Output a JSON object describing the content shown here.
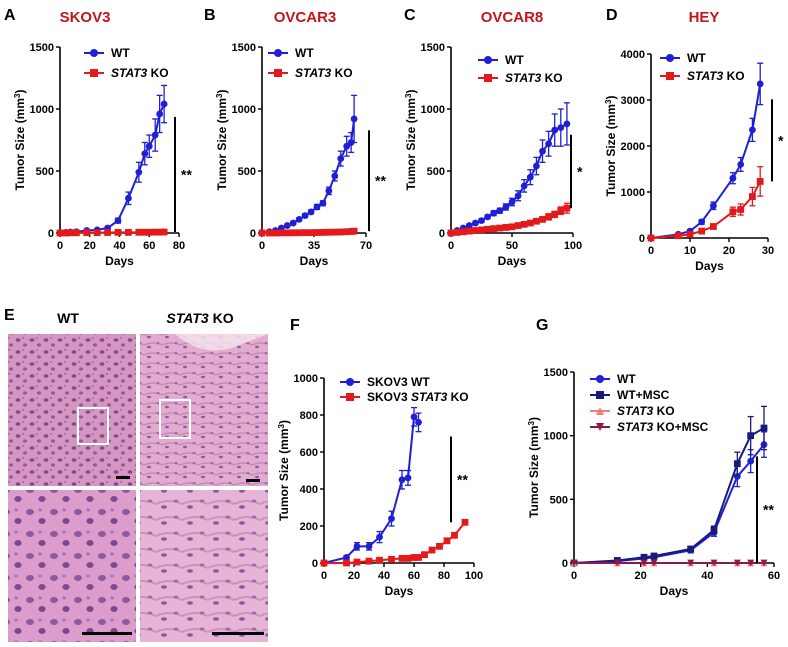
{
  "figure": {
    "panels": {
      "A": {
        "letter": "A",
        "title": "SKOV3"
      },
      "B": {
        "letter": "B",
        "title": "OVCAR3"
      },
      "C": {
        "letter": "C",
        "title": "OVCAR8"
      },
      "D": {
        "letter": "D",
        "title": "HEY"
      },
      "E": {
        "letter": "E",
        "label_wt": "WT",
        "label_ko_gene": "STAT3",
        "label_ko_suffix": " KO"
      },
      "F": {
        "letter": "F"
      },
      "G": {
        "letter": "G"
      }
    },
    "colors": {
      "wt": "#1f1fd6",
      "ko": "#e31a1c",
      "wt_msc": "#1a1a7a",
      "ko_light": "#f08080",
      "ko_msc": "#8b1a4a",
      "title_red": "#c0161c"
    }
  },
  "chart_data": [
    {
      "id": "A",
      "type": "line",
      "title": "SKOV3",
      "xlabel": "Days",
      "ylabel": "Tumor Size (mm3)",
      "xlim": [
        0,
        80
      ],
      "ylim": [
        0,
        1500
      ],
      "xticks": [
        0,
        20,
        40,
        60,
        80
      ],
      "yticks": [
        0,
        500,
        1000,
        1500
      ],
      "legend": "top-left",
      "significance": "**",
      "series": [
        {
          "name": "WT",
          "color": "#1f1fd6",
          "marker": "circle",
          "x": [
            0,
            4,
            7,
            11,
            18,
            25,
            32,
            39,
            46,
            53,
            57,
            60,
            64,
            67,
            70
          ],
          "y": [
            0,
            5,
            8,
            10,
            20,
            25,
            40,
            100,
            280,
            490,
            640,
            700,
            790,
            960,
            1040
          ],
          "err": [
            0,
            0,
            0,
            5,
            5,
            8,
            10,
            20,
            50,
            80,
            90,
            90,
            130,
            150,
            150
          ]
        },
        {
          "name": "STAT3 KO",
          "name_gene": "STAT3",
          "name_suffix": " KO",
          "color": "#e31a1c",
          "marker": "square",
          "x": [
            0,
            4,
            7,
            11,
            18,
            25,
            32,
            39,
            46,
            53,
            57,
            60,
            64,
            67,
            70
          ],
          "y": [
            0,
            0,
            2,
            2,
            3,
            3,
            4,
            5,
            5,
            6,
            6,
            6,
            7,
            7,
            8
          ],
          "err": [
            0,
            0,
            0,
            0,
            0,
            0,
            0,
            0,
            0,
            0,
            0,
            0,
            0,
            0,
            0
          ]
        }
      ]
    },
    {
      "id": "B",
      "type": "line",
      "title": "OVCAR3",
      "xlabel": "Days",
      "ylabel": "Tumor Size (mm3)",
      "xlim": [
        0,
        70
      ],
      "ylim": [
        0,
        1500
      ],
      "xticks": [
        0,
        35,
        70
      ],
      "yticks": [
        0,
        500,
        1000,
        1500
      ],
      "legend": "top-left",
      "significance": "**",
      "series": [
        {
          "name": "WT",
          "color": "#1f1fd6",
          "marker": "circle",
          "x": [
            0,
            5,
            9,
            13,
            17,
            21,
            25,
            29,
            33,
            37,
            41,
            45,
            49,
            53,
            57,
            60,
            62
          ],
          "y": [
            0,
            10,
            20,
            40,
            60,
            80,
            110,
            140,
            170,
            210,
            240,
            340,
            460,
            600,
            700,
            730,
            920
          ],
          "err": [
            0,
            0,
            5,
            5,
            8,
            10,
            10,
            15,
            15,
            20,
            20,
            30,
            40,
            60,
            80,
            80,
            190
          ]
        },
        {
          "name": "STAT3 KO",
          "name_gene": "STAT3",
          "name_suffix": " KO",
          "color": "#e31a1c",
          "marker": "square",
          "x": [
            0,
            5,
            9,
            13,
            17,
            21,
            25,
            29,
            33,
            37,
            41,
            45,
            49,
            53,
            57,
            60,
            62
          ],
          "y": [
            0,
            0,
            0,
            1,
            1,
            2,
            2,
            3,
            3,
            4,
            5,
            6,
            7,
            8,
            10,
            12,
            15
          ],
          "err": [
            0,
            0,
            0,
            0,
            0,
            0,
            0,
            0,
            0,
            0,
            0,
            0,
            0,
            0,
            0,
            0,
            0
          ]
        }
      ]
    },
    {
      "id": "C",
      "type": "line",
      "title": "OVCAR8",
      "xlabel": "Days",
      "ylabel": "Tumor Size (mm3)",
      "xlim": [
        0,
        100
      ],
      "ylim": [
        0,
        1500
      ],
      "xticks": [
        0,
        50,
        100
      ],
      "yticks": [
        0,
        500,
        1000,
        1500
      ],
      "legend": "top-left",
      "significance": "*",
      "series": [
        {
          "name": "WT",
          "color": "#1f1fd6",
          "marker": "circle",
          "x": [
            0,
            5,
            10,
            15,
            20,
            25,
            30,
            35,
            40,
            45,
            50,
            55,
            60,
            65,
            70,
            75,
            80,
            85,
            90,
            95
          ],
          "y": [
            0,
            20,
            40,
            60,
            80,
            100,
            130,
            160,
            180,
            210,
            250,
            300,
            380,
            450,
            540,
            660,
            720,
            830,
            850,
            880
          ],
          "err": [
            0,
            5,
            5,
            10,
            10,
            15,
            15,
            20,
            20,
            25,
            30,
            40,
            50,
            60,
            70,
            90,
            100,
            130,
            150,
            170
          ]
        },
        {
          "name": "STAT3 KO",
          "name_gene": "STAT3",
          "name_suffix": " KO",
          "color": "#e31a1c",
          "marker": "square",
          "x": [
            0,
            5,
            10,
            15,
            20,
            25,
            30,
            35,
            40,
            45,
            50,
            55,
            60,
            65,
            70,
            75,
            80,
            85,
            90,
            95
          ],
          "y": [
            0,
            5,
            10,
            15,
            20,
            25,
            30,
            35,
            40,
            45,
            50,
            60,
            70,
            80,
            95,
            110,
            130,
            150,
            180,
            200
          ],
          "err": [
            0,
            0,
            0,
            0,
            0,
            5,
            5,
            5,
            5,
            5,
            10,
            10,
            10,
            15,
            15,
            20,
            25,
            25,
            30,
            40
          ]
        }
      ]
    },
    {
      "id": "D",
      "type": "line",
      "title": "HEY",
      "xlabel": "Days",
      "ylabel": "Tumor Size (mm3)",
      "xlim": [
        0,
        30
      ],
      "ylim": [
        0,
        4000
      ],
      "xticks": [
        0,
        10,
        20,
        30
      ],
      "yticks": [
        0,
        1000,
        2000,
        3000,
        4000
      ],
      "legend": "top-left",
      "significance": "*",
      "series": [
        {
          "name": "WT",
          "color": "#1f1fd6",
          "marker": "circle",
          "x": [
            0,
            7,
            10,
            13,
            16,
            21,
            23,
            26,
            28
          ],
          "y": [
            0,
            80,
            150,
            350,
            700,
            1300,
            1600,
            2350,
            3350
          ],
          "err": [
            0,
            20,
            30,
            50,
            80,
            120,
            150,
            250,
            450
          ]
        },
        {
          "name": "STAT3 KO",
          "name_gene": "STAT3",
          "name_suffix": " KO",
          "color": "#e31a1c",
          "marker": "square",
          "x": [
            0,
            7,
            10,
            13,
            16,
            21,
            23,
            26,
            28
          ],
          "y": [
            0,
            50,
            80,
            150,
            250,
            570,
            620,
            900,
            1230
          ],
          "err": [
            0,
            10,
            20,
            30,
            50,
            100,
            120,
            200,
            320
          ]
        }
      ]
    },
    {
      "id": "F",
      "type": "line",
      "title": "",
      "xlabel": "Days",
      "ylabel": "Tumor Size (mm3)",
      "xlim": [
        0,
        100
      ],
      "ylim": [
        0,
        1000
      ],
      "xticks": [
        0,
        20,
        40,
        60,
        80,
        100
      ],
      "yticks": [
        0,
        200,
        400,
        600,
        800,
        1000
      ],
      "legend": "top-left",
      "significance": "**",
      "series": [
        {
          "name": "SKOV3 WT",
          "color": "#1f1fd6",
          "marker": "circle",
          "x": [
            0,
            15,
            22,
            30,
            37,
            45,
            52,
            56,
            60,
            63
          ],
          "y": [
            0,
            30,
            90,
            90,
            140,
            240,
            450,
            460,
            790,
            760
          ],
          "err": [
            0,
            10,
            20,
            20,
            30,
            40,
            50,
            40,
            50,
            50
          ]
        },
        {
          "name": "SKOV3 STAT3 KO",
          "name_prefix": "SKOV3 ",
          "name_gene": "STAT3",
          "name_suffix": " KO",
          "color": "#e31a1c",
          "marker": "square",
          "x": [
            0,
            15,
            22,
            30,
            37,
            45,
            52,
            56,
            60,
            63,
            67,
            72,
            77,
            82,
            87,
            94
          ],
          "y": [
            0,
            0,
            5,
            10,
            15,
            20,
            25,
            25,
            30,
            30,
            45,
            70,
            90,
            120,
            150,
            220
          ],
          "err": [
            0,
            0,
            0,
            0,
            0,
            0,
            0,
            0,
            0,
            0,
            5,
            5,
            5,
            10,
            10,
            10
          ]
        }
      ]
    },
    {
      "id": "G",
      "type": "line",
      "title": "",
      "xlabel": "Days",
      "ylabel": "Tumor Size (mm3)",
      "xlim": [
        0,
        60
      ],
      "ylim": [
        0,
        1500
      ],
      "xticks": [
        0,
        20,
        40,
        60
      ],
      "yticks": [
        0,
        500,
        1000,
        1500
      ],
      "legend": "top-left",
      "significance": "**",
      "series": [
        {
          "name": "WT",
          "color": "#1f1fd6",
          "marker": "circle",
          "x": [
            0,
            13,
            21,
            24,
            35,
            42,
            49,
            53,
            57
          ],
          "y": [
            0,
            15,
            35,
            45,
            100,
            240,
            680,
            800,
            930
          ],
          "err": [
            0,
            5,
            10,
            10,
            20,
            30,
            80,
            90,
            100
          ]
        },
        {
          "name": "WT+MSC",
          "color": "#1a1a7a",
          "marker": "square",
          "x": [
            0,
            13,
            21,
            24,
            35,
            42,
            49,
            53,
            57
          ],
          "y": [
            0,
            20,
            45,
            55,
            110,
            260,
            780,
            1000,
            1060
          ],
          "err": [
            0,
            5,
            10,
            10,
            20,
            30,
            90,
            150,
            170
          ]
        },
        {
          "name": "STAT3 KO",
          "name_gene": "STAT3",
          "name_suffix": " KO",
          "color": "#f08080",
          "marker": "triangle-up",
          "x": [
            0,
            13,
            21,
            24,
            35,
            42,
            49,
            53,
            57
          ],
          "y": [
            0,
            0,
            0,
            0,
            0,
            0,
            0,
            0,
            0
          ],
          "err": [
            0,
            0,
            0,
            0,
            0,
            0,
            0,
            0,
            0
          ]
        },
        {
          "name": "STAT3 KO+MSC",
          "name_gene": "STAT3",
          "name_suffix": " KO+MSC",
          "color": "#8b1a4a",
          "marker": "triangle-down",
          "x": [
            0,
            13,
            21,
            24,
            35,
            42,
            49,
            53,
            57
          ],
          "y": [
            0,
            0,
            0,
            0,
            0,
            0,
            0,
            0,
            0
          ],
          "err": [
            0,
            0,
            0,
            0,
            0,
            0,
            0,
            0,
            0
          ]
        }
      ]
    }
  ]
}
